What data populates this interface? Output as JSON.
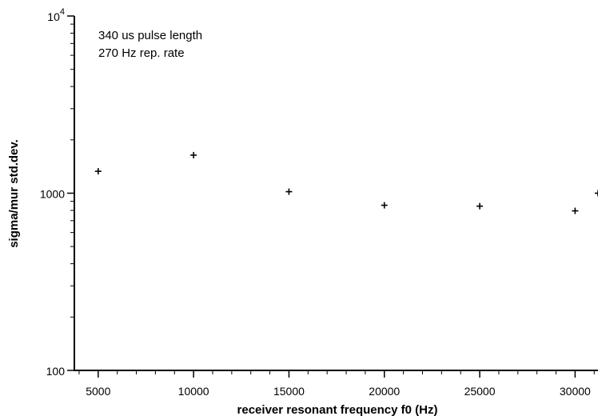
{
  "chart_data": {
    "type": "scatter",
    "xlabel": "receiver resonant frequency f0 (Hz)",
    "ylabel": "sigma/mur std.dev.",
    "xlim": [
      3750,
      31200
    ],
    "ylim": [
      100,
      10000
    ],
    "y_scale": "log",
    "grid": false,
    "x_ticks": [
      5000,
      10000,
      15000,
      20000,
      25000,
      30000
    ],
    "x_tick_labels": [
      "5000",
      "10000",
      "15000",
      "20000",
      "25000",
      "30000"
    ],
    "y_ticks": [
      100,
      1000,
      10000
    ],
    "y_tick_labels": [
      {
        "base": "100",
        "exp": ""
      },
      {
        "base": "1000",
        "exp": ""
      },
      {
        "base": "10",
        "exp": "4"
      }
    ],
    "annotations": [
      "340 us pulse length",
      "270 Hz rep. rate"
    ],
    "marker": "plus",
    "color": "#000000",
    "series": [
      {
        "x": [
          5000,
          10000,
          15000,
          20000,
          25000,
          30000,
          31200
        ],
        "y": [
          1330,
          1640,
          1020,
          855,
          845,
          795,
          1000
        ]
      }
    ]
  }
}
